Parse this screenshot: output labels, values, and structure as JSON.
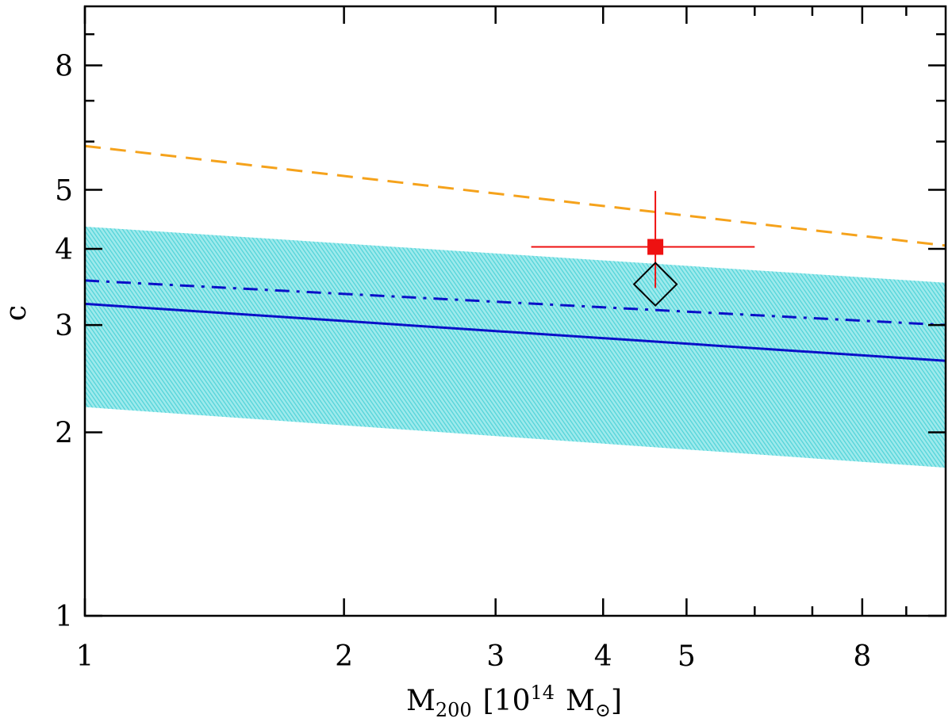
{
  "chart_data": {
    "type": "line",
    "xscale": "log",
    "yscale": "log",
    "xlim": [
      1,
      10
    ],
    "ylim": [
      1,
      10
    ],
    "xlabel": {
      "main": "M",
      "sub": "200",
      "bracket_open": "[",
      "base": "10",
      "exp": "14",
      "unit": "M",
      "unit_sub": "⊙",
      "bracket_close": "]"
    },
    "ylabel": "c",
    "x_ticks_major": [
      {
        "value": 1,
        "label": "1"
      },
      {
        "value": 2,
        "label": "2"
      },
      {
        "value": 3,
        "label": "3"
      },
      {
        "value": 4,
        "label": "4"
      },
      {
        "value": 5,
        "label": "5"
      },
      {
        "value": 8,
        "label": "8"
      }
    ],
    "x_ticks_minor": [
      6,
      7,
      9
    ],
    "y_ticks_major": [
      {
        "value": 1,
        "label": "1"
      },
      {
        "value": 2,
        "label": "2"
      },
      {
        "value": 3,
        "label": "3"
      },
      {
        "value": 4,
        "label": "4"
      },
      {
        "value": 5,
        "label": "5"
      },
      {
        "value": 8,
        "label": "8"
      }
    ],
    "y_ticks_minor": [
      6,
      7,
      9
    ],
    "band": {
      "name": "scatter-band",
      "color": "#4fd3d8",
      "lower": [
        [
          1,
          2.2
        ],
        [
          10,
          1.75
        ]
      ],
      "upper": [
        [
          1,
          4.35
        ],
        [
          10,
          3.52
        ]
      ]
    },
    "series": [
      {
        "name": "solid-relation",
        "color": "#0a10c8",
        "dash": "solid",
        "points": [
          [
            1,
            3.25
          ],
          [
            10,
            2.62
          ]
        ]
      },
      {
        "name": "dashdot-relation",
        "color": "#0a10c8",
        "dash": "dashdot",
        "points": [
          [
            1,
            3.55
          ],
          [
            10,
            3.0
          ]
        ]
      },
      {
        "name": "dashed-relation",
        "color": "#f5a21b",
        "dash": "dashed",
        "points": [
          [
            1,
            5.9
          ],
          [
            10,
            4.05
          ]
        ]
      }
    ],
    "measured_point": {
      "color": "#ee1111",
      "x": 4.6,
      "y": 4.03,
      "x_err": [
        3.3,
        6.0
      ],
      "y_err": [
        3.45,
        4.98
      ]
    },
    "diamond_point": {
      "color": "#000000",
      "x": 4.6,
      "y": 3.5
    }
  }
}
